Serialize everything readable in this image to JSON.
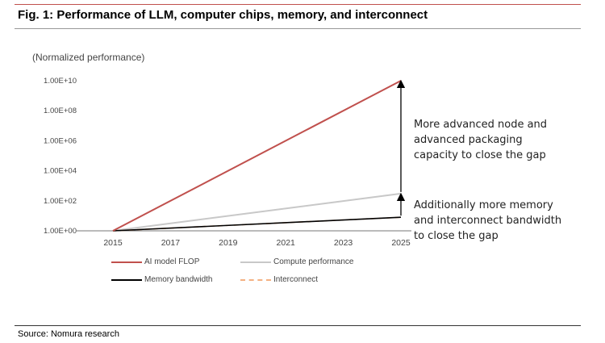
{
  "figure": {
    "title": "Fig. 1:  Performance of LLM, computer chips, memory, and interconnect",
    "source": "Source: Nomura research"
  },
  "chart_data": {
    "type": "line",
    "title": "",
    "ylabel": "(Normalized performance)",
    "xlabel": "",
    "y_scale": "log",
    "ylim": [
      1,
      10000000000
    ],
    "xlim": [
      2015,
      2025
    ],
    "x_ticks": [
      2015,
      2017,
      2019,
      2021,
      2023,
      2025
    ],
    "y_ticks": [
      1,
      100,
      10000,
      1000000,
      100000000,
      10000000000
    ],
    "y_tick_labels": [
      "1.00E+00",
      "1.00E+02",
      "1.00E+04",
      "1.00E+06",
      "1.00E+08",
      "1.00E+10"
    ],
    "grid": false,
    "legend_position": "bottom",
    "series": [
      {
        "name": "AI model FLOP",
        "color": "#c0504d",
        "style": "solid",
        "x": [
          2015,
          2025
        ],
        "y": [
          1,
          10000000000
        ]
      },
      {
        "name": "Compute performance",
        "color": "#c8c8c8",
        "style": "solid",
        "x": [
          2015,
          2025
        ],
        "y": [
          1,
          300
        ]
      },
      {
        "name": "Memory bandwidth",
        "color": "#000000",
        "style": "solid",
        "x": [
          2015,
          2025
        ],
        "y": [
          1,
          8
        ]
      },
      {
        "name": "Interconnect",
        "color": "#f4b183",
        "style": "dashed",
        "x": [
          2015,
          2025
        ],
        "y": [
          1,
          8
        ]
      }
    ],
    "annotations": [
      {
        "lines": [
          "More advanced node and",
          "advanced packaging",
          "capacity to close the gap"
        ],
        "arrow_from": 300,
        "arrow_to": 10000000000,
        "at_x": 2025
      },
      {
        "lines": [
          "Additionally more memory",
          "and interconnect bandwidth",
          "to close the gap"
        ],
        "arrow_from": 8,
        "arrow_to": 300,
        "at_x": 2025
      }
    ]
  }
}
